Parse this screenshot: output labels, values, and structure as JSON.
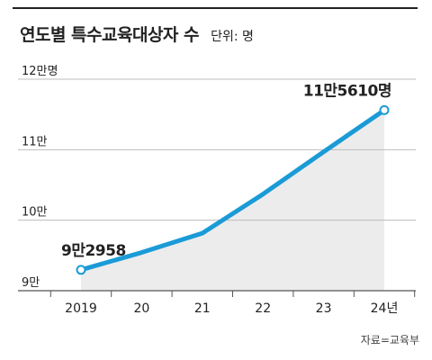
{
  "header": {
    "title": "연도별 특수교육대상자 수",
    "unit": "단위: 명"
  },
  "source": "자료=교육부",
  "colors": {
    "line": "#1a9bd7",
    "area": "#ececec",
    "grid": "#bdbdbd",
    "text": "#222222"
  },
  "chart_data": {
    "type": "line",
    "categories": [
      "2019",
      "20",
      "21",
      "22",
      "23",
      "24년"
    ],
    "values": [
      92958,
      95420,
      98154,
      103695,
      109703,
      115610
    ],
    "ylim": [
      90000,
      120000
    ],
    "yticks": [
      {
        "value": 90000,
        "label": "9만"
      },
      {
        "value": 100000,
        "label": "10만"
      },
      {
        "value": 110000,
        "label": "11만"
      },
      {
        "value": 120000,
        "label": "12만명"
      }
    ],
    "annotations": [
      {
        "index": 0,
        "label": "9만2958"
      },
      {
        "index": 5,
        "label": "11만5610명"
      }
    ],
    "grid": true,
    "area_fill": true
  }
}
